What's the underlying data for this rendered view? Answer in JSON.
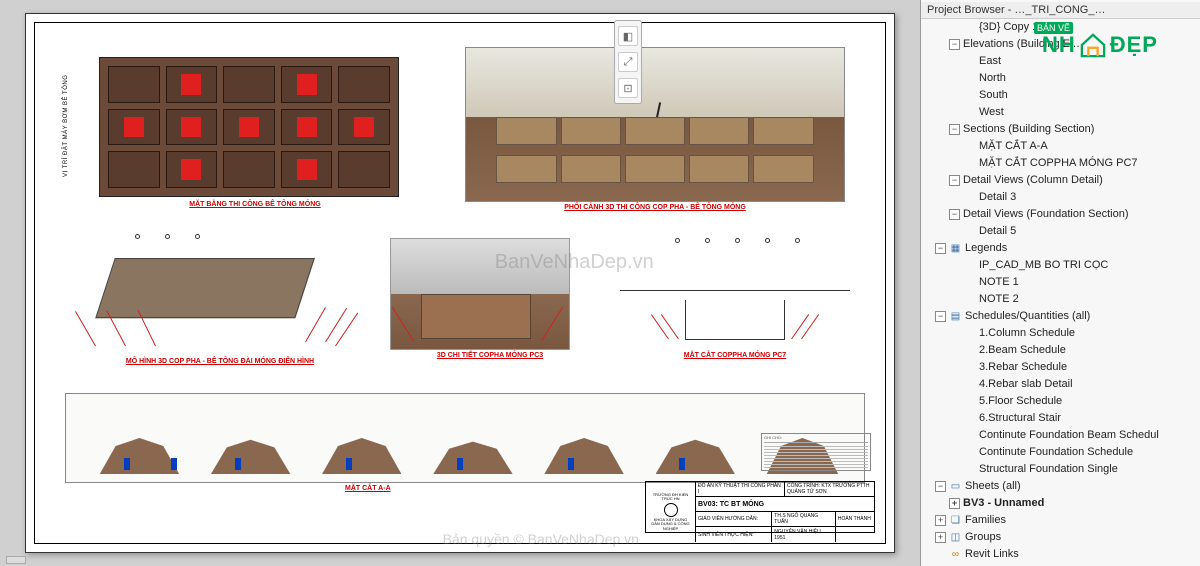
{
  "panel_title": "Project Browser - …_TRI_CONG_…",
  "brand": {
    "badge": "BẢN VẼ",
    "text1": "NH",
    "text2": "ĐẸP"
  },
  "watermarks": {
    "center": "BanVeNhaDep.vn",
    "bottom": "Bản quyền © BanVeNhaDep.vn"
  },
  "sheet": {
    "plan_title": "MẶT BẰNG THI CÔNG BÊ TÔNG MÓNG",
    "plan_side_text": "VỊ TRÍ ĐẶT MÁY BƠM BÊ TÔNG",
    "persp_title": "PHỐI CẢNH 3D THI CÔNG COP PHA - BÊ TÔNG MÓNG",
    "model_title": "MÔ HÌNH 3D COP PHA - BÊ TÔNG ĐÀI MÓNG ĐIỂN HÌNH",
    "detail_title": "3D CHI TIẾT COPHA MÓNG PC3",
    "section_title": "MẶT CẮT COPPHA MÓNG PC7",
    "long_section_title": "MẶT CẮT A-A",
    "title_block": {
      "school1": "TRƯỜNG ĐH KIẾN TRÚC HN",
      "school2": "KHOA XÂY DỰNG",
      "school3": "DÂN DỤNG & CÔNG NGHIỆP",
      "r1a": "ĐỒ ÁN KỸ THUẬT THI CÔNG PHẦN I",
      "r1b": "CÔNG TRÌNH: KTX TRƯỜNG PTTH QUẢNG TỪ SƠN",
      "sheet_code": "BV03: TC BT MÓNG",
      "r3a": "GIÁO VIÊN HƯỚNG DẪN:",
      "r3b": "TH.S NGÔ QUANG TUẤN",
      "r3c": "HOÀN THÀNH",
      "r4a": "SINH VIÊN THỰC HIỆN:",
      "r4b": "NGUYỄN VĂN HIỆU 1951"
    },
    "note_label": "GHI CHÚ:"
  },
  "tree": [
    {
      "lvl": 3,
      "exp": "",
      "icon": "",
      "label": "{3D} Copy 1",
      "int": true
    },
    {
      "lvl": 2,
      "exp": "−",
      "icon": "",
      "label": "Elevations (Building El…",
      "int": true
    },
    {
      "lvl": 3,
      "exp": "",
      "icon": "",
      "label": "East",
      "int": true
    },
    {
      "lvl": 3,
      "exp": "",
      "icon": "",
      "label": "North",
      "int": true
    },
    {
      "lvl": 3,
      "exp": "",
      "icon": "",
      "label": "South",
      "int": true
    },
    {
      "lvl": 3,
      "exp": "",
      "icon": "",
      "label": "West",
      "int": true
    },
    {
      "lvl": 2,
      "exp": "−",
      "icon": "",
      "label": "Sections (Building Section)",
      "int": true
    },
    {
      "lvl": 3,
      "exp": "",
      "icon": "",
      "label": "MẶT CẮT A-A",
      "int": true
    },
    {
      "lvl": 3,
      "exp": "",
      "icon": "",
      "label": "MẶT CẮT COPPHA MÓNG PC7",
      "int": true
    },
    {
      "lvl": 2,
      "exp": "−",
      "icon": "",
      "label": "Detail Views (Column Detail)",
      "int": true
    },
    {
      "lvl": 3,
      "exp": "",
      "icon": "",
      "label": "Detail 3",
      "int": true
    },
    {
      "lvl": 2,
      "exp": "−",
      "icon": "",
      "label": "Detail Views (Foundation Section)",
      "int": true
    },
    {
      "lvl": 3,
      "exp": "",
      "icon": "",
      "label": "Detail 5",
      "int": true
    },
    {
      "lvl": 1,
      "exp": "−",
      "icon": "leg",
      "label": "Legends",
      "int": true
    },
    {
      "lvl": 3,
      "exp": "",
      "icon": "",
      "label": "IP_CAD_MB BO TRI CỌC",
      "int": true
    },
    {
      "lvl": 3,
      "exp": "",
      "icon": "",
      "label": "NOTE 1",
      "int": true
    },
    {
      "lvl": 3,
      "exp": "",
      "icon": "",
      "label": "NOTE 2",
      "int": true
    },
    {
      "lvl": 1,
      "exp": "−",
      "icon": "sch",
      "label": "Schedules/Quantities (all)",
      "int": true
    },
    {
      "lvl": 3,
      "exp": "",
      "icon": "",
      "label": "1.Column Schedule",
      "int": true
    },
    {
      "lvl": 3,
      "exp": "",
      "icon": "",
      "label": "2.Beam Schedule",
      "int": true
    },
    {
      "lvl": 3,
      "exp": "",
      "icon": "",
      "label": "3.Rebar Schedule",
      "int": true
    },
    {
      "lvl": 3,
      "exp": "",
      "icon": "",
      "label": "4.Rebar slab Detail",
      "int": true
    },
    {
      "lvl": 3,
      "exp": "",
      "icon": "",
      "label": "5.Floor Schedule",
      "int": true
    },
    {
      "lvl": 3,
      "exp": "",
      "icon": "",
      "label": "6.Structural Stair",
      "int": true
    },
    {
      "lvl": 3,
      "exp": "",
      "icon": "",
      "label": "Continute Foundation Beam Schedul",
      "int": true
    },
    {
      "lvl": 3,
      "exp": "",
      "icon": "",
      "label": "Continute Foundation Schedule",
      "int": true
    },
    {
      "lvl": 3,
      "exp": "",
      "icon": "",
      "label": "Structural Foundation Single",
      "int": true
    },
    {
      "lvl": 1,
      "exp": "−",
      "icon": "sht",
      "label": "Sheets (all)",
      "int": true
    },
    {
      "lvl": 2,
      "exp": "+",
      "icon": "",
      "label": "BV3 - Unnamed",
      "int": true,
      "bold": true
    },
    {
      "lvl": 1,
      "exp": "+",
      "icon": "fam",
      "label": "Families",
      "int": true
    },
    {
      "lvl": 1,
      "exp": "+",
      "icon": "grp",
      "label": "Groups",
      "int": true
    },
    {
      "lvl": 1,
      "exp": "",
      "icon": "lnk",
      "label": "Revit Links",
      "int": true
    }
  ],
  "colors": {
    "soil": "#6b4a3a",
    "red": "#e02020",
    "title_red": "#d00000",
    "prop": "#d02020",
    "green": "#00a859"
  }
}
